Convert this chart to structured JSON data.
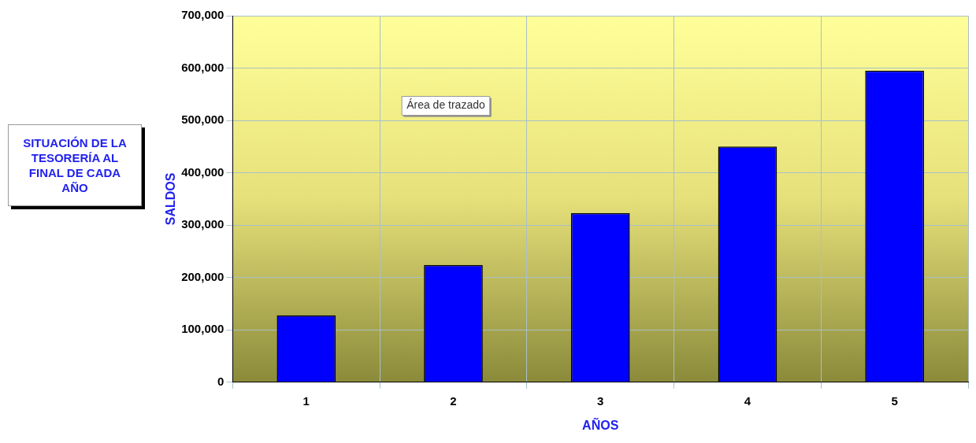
{
  "chart_data": {
    "type": "bar",
    "title": "SITUACIÓN DE LA TESORERÍA AL FINAL DE CADA AÑO",
    "xlabel": "AÑOS",
    "ylabel": "SALDOS",
    "categories": [
      "1",
      "2",
      "3",
      "4",
      "5"
    ],
    "values": [
      128000,
      224000,
      323000,
      450000,
      595000
    ],
    "color": "#0000ff",
    "ylim": [
      0,
      700000
    ],
    "yticks": [
      {
        "value": 0,
        "label": "0"
      },
      {
        "value": 100000,
        "label": "100,000"
      },
      {
        "value": 200000,
        "label": "200,000"
      },
      {
        "value": 300000,
        "label": "300,000"
      },
      {
        "value": 400000,
        "label": "400,000"
      },
      {
        "value": 500000,
        "label": "500,000"
      },
      {
        "value": 600000,
        "label": "600,000"
      },
      {
        "value": 700000,
        "label": "700,000"
      }
    ],
    "grid": true,
    "annotations": [
      "Área de trazado"
    ]
  }
}
